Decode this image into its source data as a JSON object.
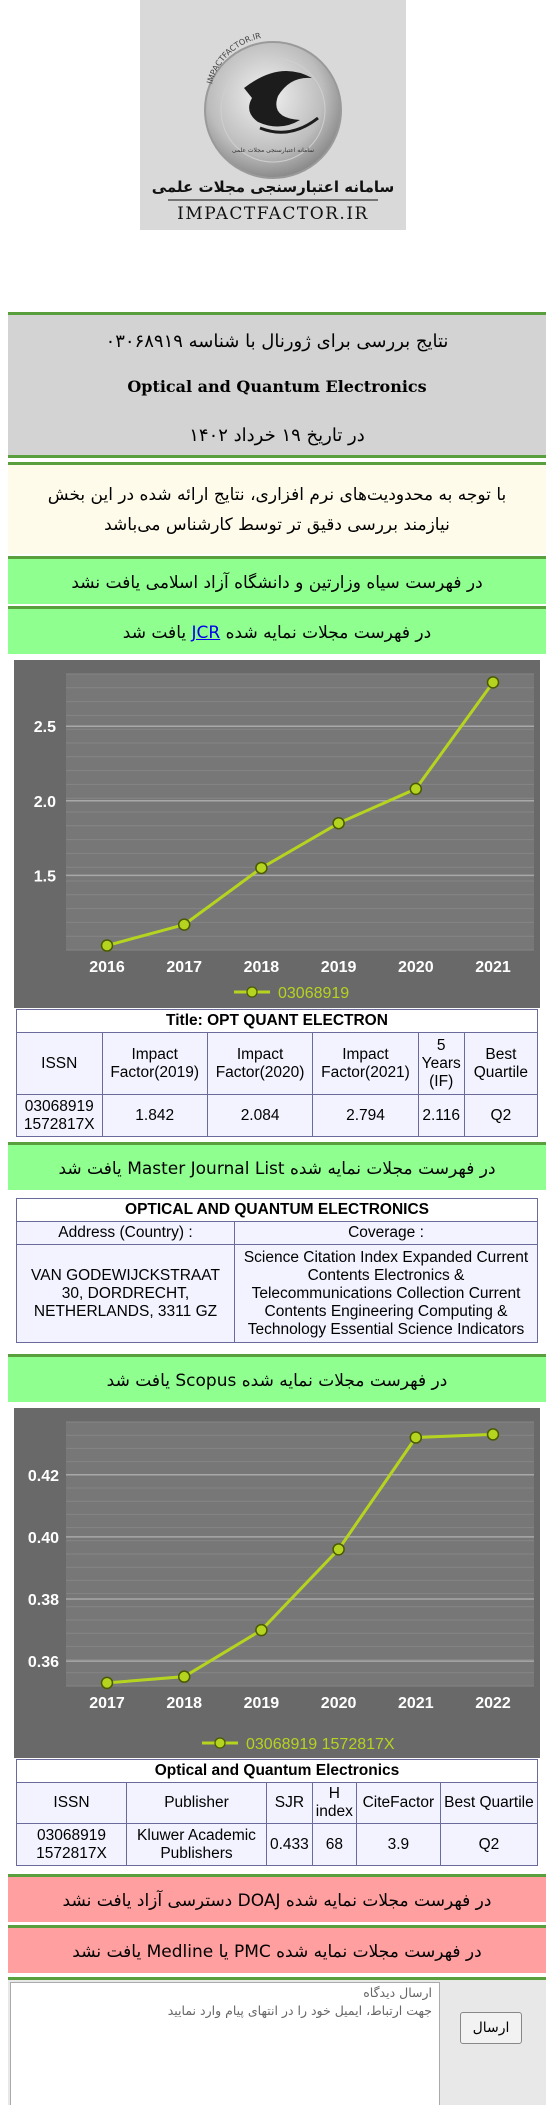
{
  "logo": {
    "brand_fa": "سامانه اعتبارسنجی مجلات علمی",
    "site": "IMPACTFACTOR.IR",
    "ring_text": "IMPACTFACTOR.IR",
    "ring_text_bottom": "سامانه اعتبارسنجی مجلات علمی"
  },
  "result": {
    "title": "نتایج بررسی برای ژورنال با شناسه ۰۳۰۶۸۹۱۹",
    "journal_name": "Optical and Quantum Electronics",
    "date": "در تاریخ ۱۹ خرداد ۱۴۰۲"
  },
  "notice": {
    "line1": "با توجه به محدودیت‌های نرم افزاری، نتایج ارائه شده در این بخش",
    "line2": "نیازمند بررسی دقیق تر توسط کارشناس می‌باشد"
  },
  "bands": {
    "blacklist": "در فهرست سیاه وزارتین و دانشگاه آزاد اسلامی یافت نشد",
    "jcr_pre": "در فهرست مجلات نمایه شده",
    "jcr_link": "JCR",
    "jcr_post": "یافت شد",
    "mjl": "در فهرست مجلات نمایه شده Master Journal List یافت شد",
    "scopus": "در فهرست مجلات نمایه شده Scopus یافت شد",
    "doaj": "در فهرست مجلات نمایه شده DOAJ دسترسی آزاد یافت نشد",
    "pmc": "در فهرست مجلات نمایه شده PMC یا Medline یافت نشد"
  },
  "jcr": {
    "title": "Title: OPT QUANT ELECTRON",
    "headers": [
      "ISSN",
      "Impact Factor(2019)",
      "Impact Factor(2020)",
      "Impact Factor(2021)",
      "5 Years (IF)",
      "Best Quartile"
    ],
    "row": {
      "issn1": "03068919",
      "issn2": "1572817X",
      "if2019": "1.842",
      "if2020": "2.084",
      "if2021": "2.794",
      "five": "2.116",
      "quartile": "Q2"
    }
  },
  "mjl": {
    "title": "OPTICAL AND QUANTUM ELECTRONICS",
    "address_label": "Address (Country) :",
    "coverage_label": "Coverage :",
    "address": "VAN GODEWIJCKSTRAAT 30, DORDRECHT, NETHERLANDS, 3311 GZ",
    "coverage": "Science Citation Index Expanded Current Contents Electronics & Telecommunications Collection Current Contents Engineering Computing & Technology Essential Science Indicators"
  },
  "scopus": {
    "title": "Optical and Quantum Electronics",
    "headers": [
      "ISSN",
      "Publisher",
      "SJR",
      "H index",
      "CiteFactor",
      "Best Quartile"
    ],
    "row": {
      "issn1": "03068919",
      "issn2": "1572817X",
      "publisher": "Kluwer Academic Publishers",
      "sjr": "0.433",
      "h": "68",
      "cite": "3.9",
      "quartile": "Q2"
    }
  },
  "feedback": {
    "placeholder_line1": "ارسال دیدگاه",
    "placeholder_line2": "جهت ارتباط، ایمیل خود را در انتهای پیام وارد نمایید",
    "send": "ارسال"
  },
  "chart_data": [
    {
      "type": "line",
      "x": [
        "2016",
        "2017",
        "2018",
        "2019",
        "2020",
        "2021"
      ],
      "series": [
        {
          "name": "03068919",
          "values": [
            1.03,
            1.17,
            1.55,
            1.85,
            2.08,
            2.794
          ]
        }
      ],
      "yticks": [
        "1.5",
        "2.0",
        "2.5"
      ],
      "ylim": [
        1.0,
        2.85
      ],
      "grid": true,
      "legend": "bottom",
      "colors": {
        "line": "#b5d420",
        "background": "#696969",
        "plot": "#777777",
        "text": "#ffffff"
      }
    },
    {
      "type": "line",
      "x": [
        "2017",
        "2018",
        "2019",
        "2020",
        "2021",
        "2022"
      ],
      "series": [
        {
          "name": "03068919 1572817X",
          "values": [
            0.353,
            0.355,
            0.37,
            0.396,
            0.432,
            0.433
          ]
        }
      ],
      "yticks": [
        "0.36",
        "0.38",
        "0.40",
        "0.42"
      ],
      "ylim": [
        0.352,
        0.437
      ],
      "grid": true,
      "legend": "bottom",
      "colors": {
        "line": "#b5d420",
        "background": "#696969",
        "plot": "#777777",
        "text": "#ffffff"
      }
    }
  ]
}
